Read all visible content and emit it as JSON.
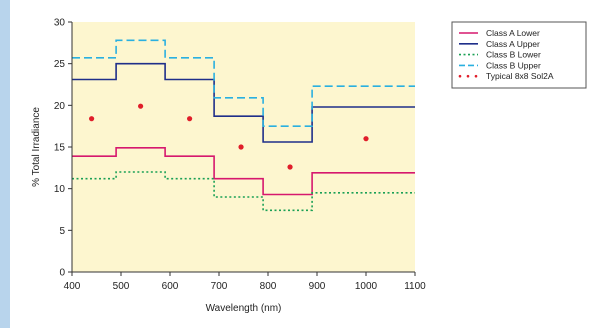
{
  "chart_data": {
    "type": "line",
    "step": true,
    "xlabel": "Wavelength (nm)",
    "ylabel": "% Total Irradiance",
    "xlim": [
      400,
      1100
    ],
    "ylim": [
      0,
      30
    ],
    "xticks": [
      400,
      500,
      600,
      700,
      800,
      900,
      1000,
      1100
    ],
    "yticks": [
      0,
      5,
      10,
      15,
      20,
      25,
      30
    ],
    "grid": false,
    "legend_position": "outside-right",
    "plot_background": "#fdf6cf",
    "bin_edges": [
      400,
      490,
      590,
      690,
      790,
      890,
      1100
    ],
    "series": [
      {
        "name": "Class A Lower",
        "style": "solid",
        "color": "#d6186e",
        "values": [
          13.9,
          14.9,
          13.9,
          11.2,
          9.3,
          11.9
        ]
      },
      {
        "name": "Class A Upper",
        "style": "solid",
        "color": "#1f2f8a",
        "values": [
          23.1,
          25.0,
          23.1,
          18.7,
          15.6,
          19.8
        ]
      },
      {
        "name": "Class B Lower",
        "style": "dotted",
        "color": "#1aa055",
        "values": [
          11.2,
          12.0,
          11.2,
          9.0,
          7.4,
          9.5
        ]
      },
      {
        "name": "Class B Upper",
        "style": "dashed",
        "color": "#2ab0e0",
        "values": [
          25.7,
          27.8,
          25.7,
          20.9,
          17.5,
          22.3
        ]
      },
      {
        "name": "Typical 8x8 Sol2A",
        "style": "points",
        "color": "#e01e2a",
        "points": [
          {
            "x": 440,
            "y": 18.4
          },
          {
            "x": 540,
            "y": 19.9
          },
          {
            "x": 640,
            "y": 18.4
          },
          {
            "x": 745,
            "y": 15.0
          },
          {
            "x": 845,
            "y": 12.6
          },
          {
            "x": 1000,
            "y": 16.0
          }
        ]
      }
    ]
  }
}
